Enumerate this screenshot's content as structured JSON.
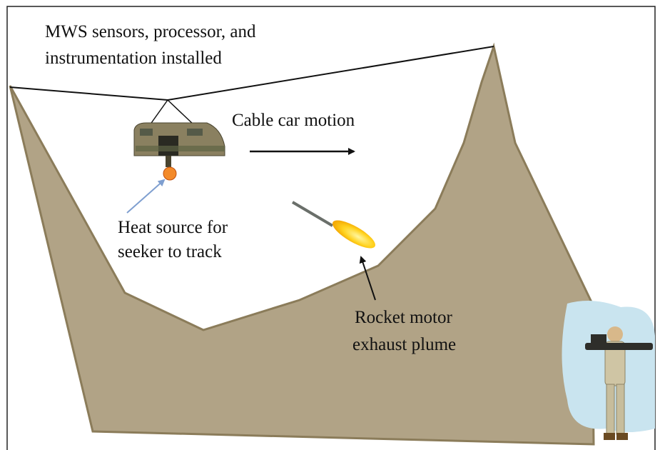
{
  "labels": [
    {
      "lines": [
        "MWS sensors, processor, and",
        "instrumentation installed"
      ]
    },
    {
      "lines": [
        "Cable car motion"
      ]
    },
    {
      "lines": [
        "Heat source for",
        "seeker to track"
      ]
    },
    {
      "lines": [
        "Rocket motor",
        "exhaust plume"
      ]
    }
  ]
}
